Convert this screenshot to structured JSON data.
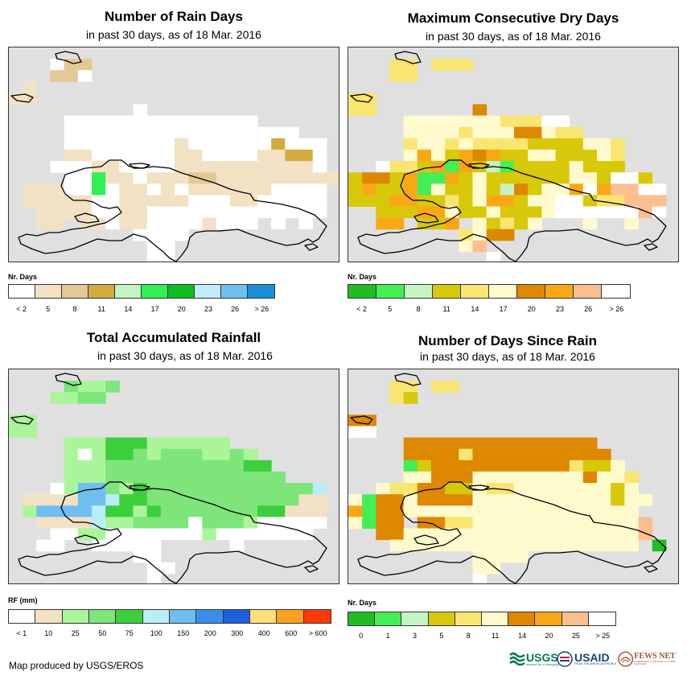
{
  "panels": [
    {
      "id": "rain-days",
      "title": "Number of Rain Days",
      "subtitle": "in past 30 days, as of 18 Mar. 2016",
      "legend_title": "Nr. Days",
      "legend_colors": [
        "#ffffff",
        "#f3e1c4",
        "#e2c996",
        "#d2aa3e",
        "#c2f5c2",
        "#33ee55",
        "#11bb22",
        "#c0ecf7",
        "#6ec0f0",
        "#1a8ed6"
      ],
      "legend_ticks": [
        "< 2",
        "5",
        "8",
        "11",
        "14",
        "17",
        "20",
        "23",
        "26",
        "> 26"
      ],
      "palette": {
        "a": "#f3e1c4",
        "b": "#e2c996",
        "c": "#d2aa3e",
        "g": "#33ee55",
        "w": "#ffffff"
      }
    },
    {
      "id": "dry-days",
      "title": "Maximum Consecutive Dry Days",
      "subtitle": "in past 30 days, as of 18 Mar. 2016",
      "legend_title": "Nr. Days",
      "legend_colors": [
        "#22bb22",
        "#44ee55",
        "#c4f4c4",
        "#d8c80a",
        "#f9e572",
        "#fffacd",
        "#dd8800",
        "#f9a815",
        "#fbbf8f",
        "#ffffff"
      ],
      "legend_ticks": [
        "< 2",
        "5",
        "8",
        "11",
        "14",
        "17",
        "20",
        "23",
        "26",
        "> 26"
      ],
      "palette": {
        "y": "#d8c80a",
        "l": "#f9e572",
        "p": "#fffacd",
        "o": "#dd8800",
        "r": "#f9a815",
        "s": "#fbbf8f",
        "g": "#44ee55",
        "m": "#c4f4c4",
        "w": "#ffffff"
      }
    },
    {
      "id": "total-rainfall",
      "title": "Total Accumulated Rainfall",
      "subtitle": "in past 30 days, as of 18 Mar. 2016",
      "legend_title": "RF (mm)",
      "legend_colors": [
        "#ffffff",
        "#f3e1c4",
        "#aaf59a",
        "#7ee57a",
        "#3ccf3c",
        "#b8eef7",
        "#70bdf0",
        "#3a90e8",
        "#1e5fe0",
        "#ffe07a",
        "#ffa020",
        "#ff3a0a"
      ],
      "legend_ticks": [
        "< 1",
        "10",
        "25",
        "50",
        "75",
        "100",
        "150",
        "200",
        "300",
        "400",
        "600",
        "> 600"
      ],
      "palette": {
        "a": "#f3e1c4",
        "l": "#aaf59a",
        "m": "#7ee57a",
        "d": "#3ccf3c",
        "c": "#b8eef7",
        "b": "#70bdf0",
        "w": "#ffffff"
      }
    },
    {
      "id": "days-since-rain",
      "title": "Number of Days Since Rain",
      "subtitle": "in past 30 days, as of 18 Mar. 2016",
      "legend_title": "Nr. Days",
      "legend_colors": [
        "#22bb22",
        "#44ee55",
        "#c4f4c4",
        "#d8c80a",
        "#f9e572",
        "#fffacd",
        "#dd8800",
        "#f9a815",
        "#fbbf8f",
        "#ffffff"
      ],
      "legend_ticks": [
        "0",
        "1",
        "3",
        "5",
        "8",
        "11",
        "14",
        "20",
        "25",
        "> 25"
      ],
      "palette": {
        "y": "#d8c80a",
        "l": "#f9e572",
        "p": "#fffacd",
        "o": "#dd8800",
        "r": "#f9a815",
        "s": "#fbbf8f",
        "g": "#44ee55",
        "d": "#22bb22",
        "m": "#c4f4c4",
        "w": "#ffffff"
      }
    }
  ],
  "grids": {
    "rain-days": [
      "........................",
      "...wbb..................",
      "...bbw..................",
      ".a......................",
      "aa......................",
      ".........w..............",
      "....wwwwwwwwwwwwww......",
      "....wwwwwwwwwwwwwwwww...",
      "....wwwwwwwwawwwwwwcwww.",
      "....aawwwwwwaawwwwaaccw.",
      "...wwwaawwwwaaaaaaaaaaw.",
      "....wwgaawaaabbaaaaaaaaa",
      ".aaawwgwaawawaaaaaawwww.",
      ".aaaaawwaaaaawwwaawwwww.",
      "..aaaawwaawwwwwwwwwwwww.",
      "..aa.aawaawwwwawww.w.w..",
      ".........wwww...........",
      "..........ww............",
      "..........ww............"
    ],
    "dry-days": [
      "........................",
      "...ll.lll...............",
      "...ll...................",
      "........................",
      "ll......................",
      "ll.......o..............",
      "....ppppppplllww........",
      "....pppplpppoopll.......",
      "....lpplpllllyyyyppl....",
      "....prpyroryyppyyypl....",
      "..wllyrgrymgyyyypyyy....",
      "yooyrggrypyyyyyyppywwy..",
      "yryyrgpyypymoypprwrssww.",
      "yyyrryylyprryppwwyllsss.",
      "..yyyrrpyypyyypwwwwwwsw.",
      "..rr.yyr.pylyp...p..p...",
      "........lpoo............",
      "........ps..............",
      "..........w............."
    ],
    "total-rainfall": [
      "........................",
      "....mllm................",
      "...llmm.................",
      "........................",
      "ll......................",
      "ll......................",
      "....llldddllllll........",
      "....ltlddmlmmmllml......",
      "....lllmmmmmmmmmmdd.....",
      "....lllmmmmmmmmmmmmm....",
      "...wlbbmldmmmmmmmmmmmmc.",
      ".aaaabbcddmmmmmmmmmmmaa.",
      ".lbbbbcddldmmmmmmmddaaa.",
      "..aaaacllmmmmwmmmlwwwww.",
      "...wwllwwwwwwwlwwwwwww..",
      "..ww..wwwww.....w.......",
      ".........ww.............",
      "..........ww............",
      "..........w............."
    ],
    "days-since-rain": [
      "........................",
      "...ll.ll................",
      "...ly...................",
      "........................",
      "oo......................",
      "ww......................",
      "....oooooooooooooo......",
      "....ooooloooooooooo.....",
      "....gyoooooooooolyyp....",
      "....ppoooppppppppoppl...",
      "..pllooyypllpppppppyp...",
      "pgoopooooppppppppppypp..",
      "rgooppppppppppppppppp...",
      "pgoo.oollpppppppppppps..",
      "..ooppppppppppppppppps..",
      "...pppppppppppppppppp.d.",
      ".........pppp...........",
      ".........pp.............",
      ".........w.............."
    ]
  },
  "credit": "Map produced by USGS/EROS",
  "logos": {
    "usgs": "USGS",
    "usgs_tagline": "science for a changing world",
    "usaid": "USAID",
    "usaid_tagline": "FROM THE AMERICAN PEOPLE",
    "fews": "FEWS NET",
    "fews_tagline": "FAMINE EARLY WARNING SYSTEMS NETWORK"
  }
}
